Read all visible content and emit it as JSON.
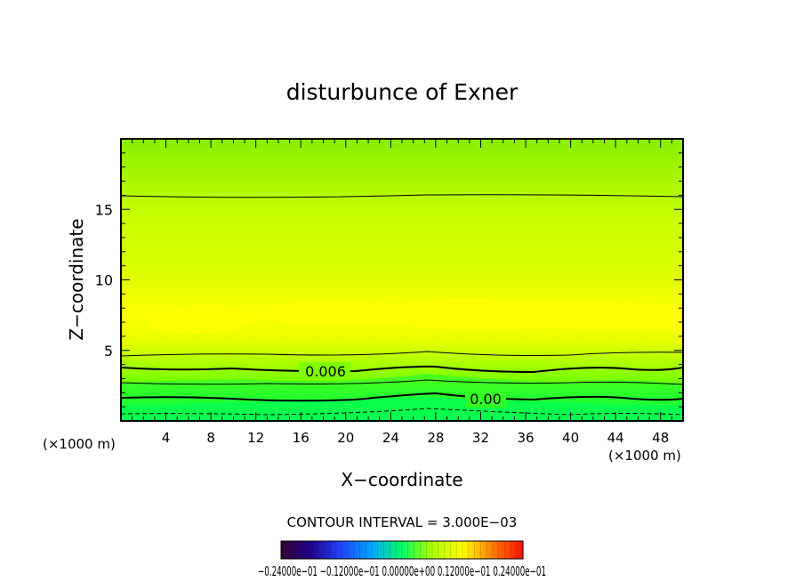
{
  "chart_data": {
    "type": "contour",
    "title": "disturbunce of Exner",
    "xlabel": "X−coordinate",
    "ylabel": "Z−coordinate",
    "x_unit": "(×1000 m)",
    "y_unit": "(×1000 m)",
    "xlim": [
      0,
      50
    ],
    "ylim": [
      0,
      20
    ],
    "x_ticks": [
      4,
      8,
      12,
      16,
      20,
      24,
      28,
      32,
      36,
      40,
      44,
      48
    ],
    "y_ticks": [
      5,
      10,
      15
    ],
    "contour_interval_label": "CONTOUR INTERVAL = 3.000E−03",
    "contour_labels": [
      {
        "text": "0.006",
        "x": 18,
        "z": 3.6
      },
      {
        "text": "0.00",
        "x": 32,
        "z": 1.6
      }
    ],
    "colorbar_label": "−0.24000e−01 −0.12000e−01 0.00000e+00 0.12000e−01 0.24000e−01",
    "colorbar_range": [
      -0.024,
      0.024
    ],
    "field_description": "Field peaks near z ~ 7 km (yellow), decreasing toward the surface (green) and upward (yellow-green)"
  },
  "colors": {
    "surface": "#00ff44",
    "low": "#55ff00",
    "mid": "#99ff00",
    "peak": "#ffff00",
    "upper": "#ccff00",
    "top": "#88ee00"
  }
}
